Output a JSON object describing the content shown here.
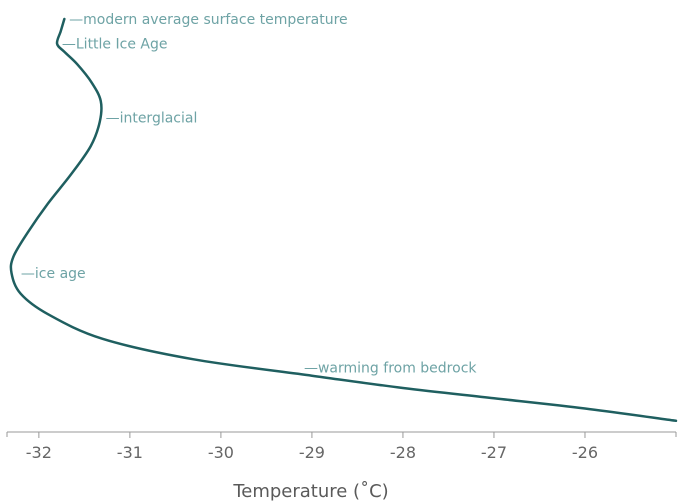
{
  "chart_data": {
    "type": "line",
    "title": "",
    "xlabel": "Temperature (˚C)",
    "ylabel": "",
    "xlim": [
      -32.35,
      -25.0
    ],
    "ylim": [
      0,
      100
    ],
    "y_reversed": true,
    "y_axis_visible": false,
    "grid": false,
    "x_ticks": [
      -32,
      -31,
      -30,
      -29,
      -28,
      -27,
      -26
    ],
    "x_tick_labels": [
      "-32",
      "-31",
      "-30",
      "-29",
      "-28",
      "-27",
      "-26"
    ],
    "series": [
      {
        "color": "#1f5f60",
        "points": [
          [
            -31.72,
            0
          ],
          [
            -31.76,
            3
          ],
          [
            -31.8,
            6
          ],
          [
            -31.72,
            8
          ],
          [
            -31.58,
            11
          ],
          [
            -31.42,
            15.5
          ],
          [
            -31.32,
            20
          ],
          [
            -31.33,
            25
          ],
          [
            -31.43,
            31
          ],
          [
            -31.65,
            38
          ],
          [
            -31.9,
            45
          ],
          [
            -32.12,
            52
          ],
          [
            -32.28,
            58
          ],
          [
            -32.3,
            62
          ],
          [
            -32.2,
            67
          ],
          [
            -31.9,
            72
          ],
          [
            -31.3,
            78
          ],
          [
            -30.3,
            83
          ],
          [
            -29.0,
            87
          ],
          [
            -28.0,
            90
          ],
          [
            -27.0,
            92.5
          ],
          [
            -26.0,
            95
          ],
          [
            -25.0,
            98
          ]
        ]
      }
    ],
    "annotations": [
      {
        "text": "—modern average surface temperature",
        "x": -31.7,
        "y": 0
      },
      {
        "text": "—Little Ice Age",
        "x": -31.78,
        "y": 6
      },
      {
        "text": "—interglacial",
        "x": -31.3,
        "y": 24
      },
      {
        "text": "—ice age",
        "x": -32.23,
        "y": 62
      },
      {
        "text": "—warming from bedrock",
        "x": -29.12,
        "y": 85
      }
    ],
    "colors": {
      "line": "#1f5f60",
      "annotation": "#6ea3a5",
      "axis": "#999999",
      "tick_text": "#666666",
      "axis_title": "#5a5a5a"
    }
  }
}
